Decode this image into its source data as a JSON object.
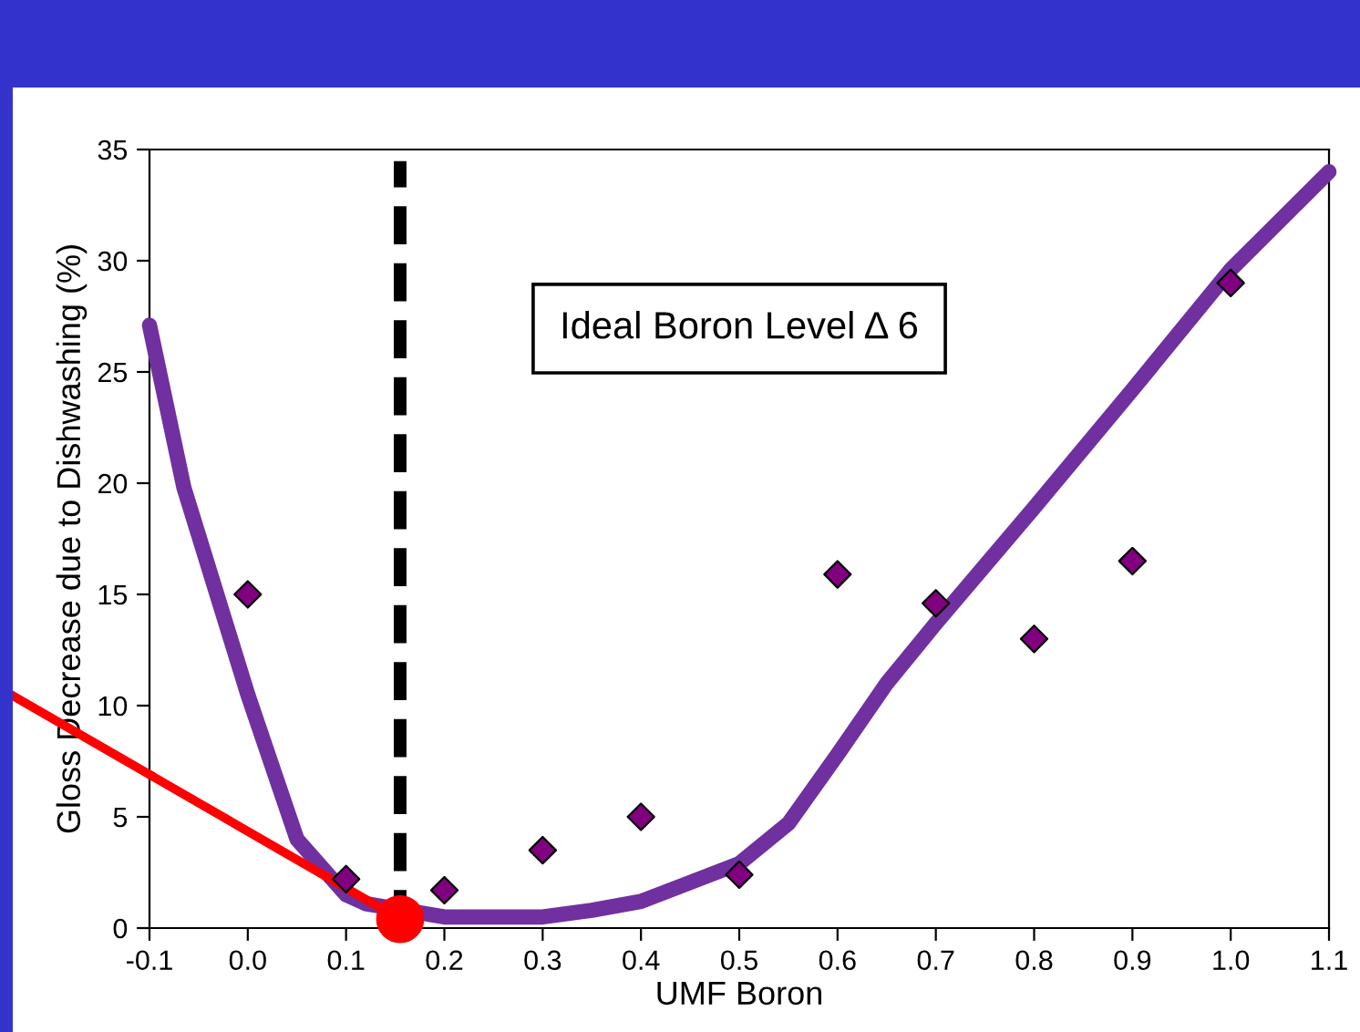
{
  "chart_data": {
    "type": "scatter",
    "xlabel": "UMF Boron",
    "ylabel": "Gloss Decrease due to Dishwashing (%)",
    "annotations": [
      "Ideal Boron Level Δ 6"
    ],
    "xlim": [
      -0.1,
      1.1
    ],
    "ylim": [
      0,
      35
    ],
    "xticks": [
      -0.1,
      {
        "value": 0,
        "label": "0.0"
      },
      0.1,
      0.2,
      0.3,
      0.4,
      0.5,
      0.6,
      0.7,
      0.8,
      0.9,
      {
        "value": 1,
        "label": "1.0"
      },
      1.1
    ],
    "yticks": [
      0,
      5,
      10,
      15,
      20,
      25,
      30,
      35
    ],
    "grid": false,
    "legend": false,
    "x": [
      0.0,
      0.1,
      0.2,
      0.3,
      0.4,
      0.5,
      0.6,
      0.7,
      0.8,
      0.9,
      1.0
    ],
    "series": [
      {
        "marker": "diamond",
        "color": "#800080",
        "values": [
          15,
          2.2,
          1.7,
          3.5,
          5.0,
          2.4,
          15.9,
          14.6,
          13.0,
          16.5,
          29.0
        ]
      },
      {
        "type": "line",
        "marker": "none",
        "line_style": "solid",
        "color": "#7030a0",
        "x": [
          -0.1,
          -0.065,
          0.0,
          0.05,
          0.1,
          0.12,
          0.2,
          0.26,
          0.3,
          0.35,
          0.4,
          0.5,
          0.55,
          0.6,
          0.65,
          0.7,
          0.8,
          0.9,
          1.0,
          1.1
        ],
        "values": [
          27.1,
          19.8,
          10.5,
          4.0,
          1.5,
          1.1,
          0.5,
          0.5,
          0.5,
          0.8,
          1.2,
          2.9,
          4.7,
          7.8,
          11.0,
          13.7,
          18.9,
          24.2,
          29.6,
          34.0
        ]
      },
      {
        "type": "line",
        "marker": "none",
        "line_style": "solid",
        "color": "#ff0000",
        "x": [
          -0.1,
          0.155
        ],
        "values": [
          6.9,
          0.4
        ]
      },
      {
        "type": "scatter",
        "marker": "circle",
        "color": "#ff0000",
        "x": [
          0.155
        ],
        "values": [
          0.4
        ]
      }
    ],
    "ref_lines": [
      {
        "axis": "x",
        "value": 0.155,
        "color": "#000000",
        "line_style": "dashed"
      }
    ]
  }
}
